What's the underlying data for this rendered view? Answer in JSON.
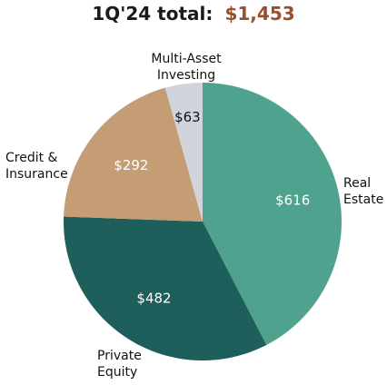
{
  "chart_data": {
    "type": "pie",
    "title": "1Q'24 total:",
    "total": "$1,453",
    "slices": [
      {
        "name": "Real Estate",
        "label_lines": [
          "Real",
          "Estate"
        ],
        "value": 616,
        "value_label": "$616",
        "color": "#4fa38e",
        "text_color": "#ffffff"
      },
      {
        "name": "Private Equity",
        "label_lines": [
          "Private",
          "Equity"
        ],
        "value": 482,
        "value_label": "$482",
        "color": "#1f5f5b",
        "text_color": "#ffffff"
      },
      {
        "name": "Credit & Insurance",
        "label_lines": [
          "Credit &",
          "Insurance"
        ],
        "value": 292,
        "value_label": "$292",
        "color": "#c49d74",
        "text_color": "#ffffff"
      },
      {
        "name": "Multi-Asset Investing",
        "label_lines": [
          "Multi-Asset",
          "Investing"
        ],
        "value": 63,
        "value_label": "$63",
        "color": "#d2d4dc",
        "text_color": "#111111"
      }
    ],
    "start_angle_deg": 0,
    "direction": "clockwise",
    "legend": "none",
    "accent_color": "#9a4f2b"
  }
}
